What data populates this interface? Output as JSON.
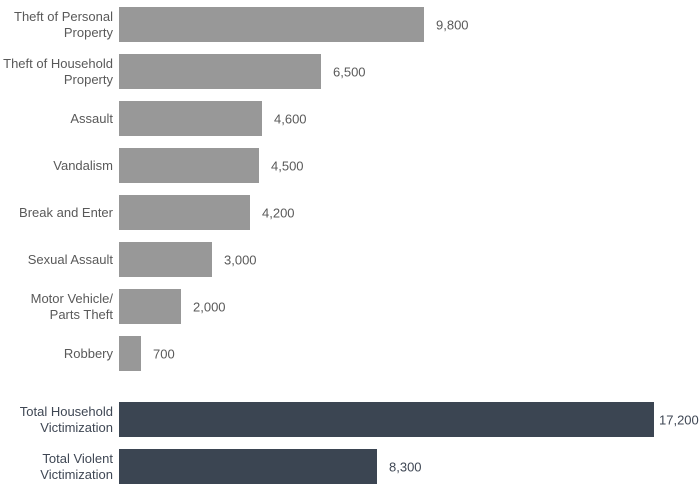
{
  "chart_data": {
    "type": "bar",
    "orientation": "horizontal",
    "title": "",
    "xlabel": "",
    "ylabel": "",
    "xlim": [
      0,
      18000
    ],
    "grid": false,
    "legend": false,
    "value_labels_shown": true,
    "groups": [
      {
        "name": "offence-types",
        "bar_color": "#989898",
        "label_color": "#595959",
        "value_color": "#595959",
        "categories": [
          "Theft of Personal\nProperty",
          "Theft of Household\nProperty",
          "Assault",
          "Vandalism",
          "Break and Enter",
          "Sexual Assault",
          "Motor Vehicle/\nParts Theft",
          "Robbery"
        ],
        "values": [
          9800,
          6500,
          4600,
          4500,
          4200,
          3000,
          2000,
          700
        ],
        "value_labels": [
          "9,800",
          "6,500",
          "4,600",
          "4,500",
          "4,200",
          "3,000",
          "2,000",
          "700"
        ]
      },
      {
        "name": "totals",
        "bar_color": "#3b4552",
        "label_color": "#3f4754",
        "value_color": "#3f4754",
        "categories": [
          "Total Household\nVictimization",
          "Total Violent\nVictimization"
        ],
        "values": [
          17200,
          8300
        ],
        "value_labels": [
          "17,200",
          "8,300"
        ]
      }
    ]
  }
}
